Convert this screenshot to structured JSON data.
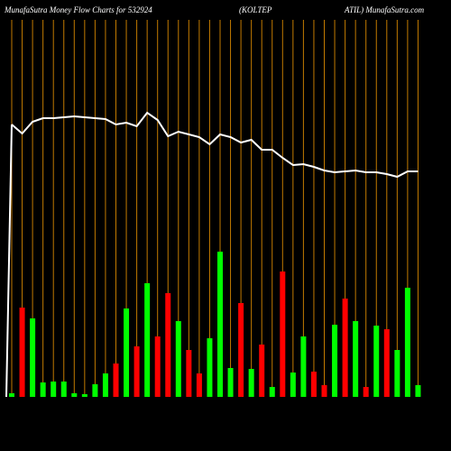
{
  "chart_data": {
    "type": "bar-line",
    "title_parts": [
      "MunafaSutra  Money Flow  Charts for 532924",
      "(KOLTEP",
      "ATIL) MunafaSutra.com"
    ],
    "ylim": [
      0,
      440
    ],
    "grid": true,
    "grid_color": "#c27a00",
    "line_color": "#ffffff",
    "bar_values": [
      4,
      99,
      87,
      16,
      17,
      17,
      4,
      3,
      14,
      26,
      37,
      98,
      56,
      126,
      67,
      115,
      84,
      52,
      26,
      65,
      161,
      32,
      104,
      31,
      58,
      11,
      139,
      27,
      67,
      28,
      13,
      80,
      109,
      84,
      11,
      79,
      75,
      52,
      121,
      13
    ],
    "bar_colors": [
      "#00ff00",
      "#ff0000",
      "#00ff00",
      "#00ff00",
      "#00ff00",
      "#00ff00",
      "#00ff00",
      "#00ff00",
      "#00ff00",
      "#00ff00",
      "#ff0000",
      "#00ff00",
      "#ff0000",
      "#00ff00",
      "#ff0000",
      "#ff0000",
      "#00ff00",
      "#ff0000",
      "#ff0000",
      "#00ff00",
      "#00ff00",
      "#00ff00",
      "#ff0000",
      "#00ff00",
      "#ff0000",
      "#00ff00",
      "#ff0000",
      "#00ff00",
      "#00ff00",
      "#ff0000",
      "#ff0000",
      "#00ff00",
      "#ff0000",
      "#00ff00",
      "#ff0000",
      "#00ff00",
      "#ff0000",
      "#00ff00",
      "#00ff00",
      "#00ff00"
    ],
    "line_values": [
      302,
      292,
      305,
      309,
      309,
      310,
      311,
      310,
      309,
      308,
      302,
      304,
      300,
      315,
      307,
      289,
      294,
      291,
      288,
      280,
      291,
      288,
      282,
      285,
      274,
      274,
      265,
      257,
      258,
      255,
      251,
      249,
      250,
      251,
      249,
      249,
      247,
      244,
      250,
      250
    ]
  }
}
